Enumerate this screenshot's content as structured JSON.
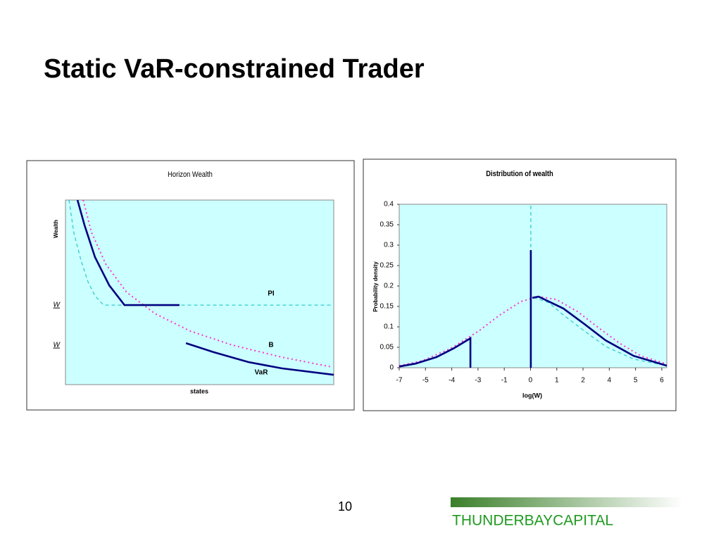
{
  "title": "Static VaR-constrained Trader",
  "page_number": "10",
  "brand": "THUNDERBAYCAPITAL",
  "chart_data": [
    {
      "type": "line",
      "title": "Horizon Wealth",
      "x_label": "states",
      "y_label": "Wealth",
      "xlim": [
        0,
        100
      ],
      "ylim": [
        0,
        100
      ],
      "yticks": [
        {
          "value": 43.1,
          "label": "W"
        },
        {
          "value": 21.4,
          "label": "W"
        }
      ],
      "series": [
        {
          "name": "PI",
          "color": "#33cccc",
          "style": "dashed",
          "x": [
            1.3,
            3.1,
            5.8,
            8.4,
            11.0,
            14.2,
            100
          ],
          "values": [
            100,
            82.4,
            67.2,
            55.7,
            48.1,
            43.1,
            43.1
          ]
        },
        {
          "name": "B",
          "color": "#ff33cc",
          "style": "dotted",
          "x": [
            6.6,
            9.7,
            15.0,
            22.8,
            33.3,
            46.5,
            62.2,
            80.6,
            99.5
          ],
          "values": [
            100,
            82.4,
            65.3,
            50.0,
            38.5,
            29.0,
            21.4,
            14.9,
            9.5
          ]
        },
        {
          "name": "VaR",
          "color": "#000080",
          "style": "solid",
          "x": [
            4.5,
            7.1,
            11.0,
            16.3,
            22.0,
            42.5,
            null,
            44.9,
            55.2,
            68.2,
            80.6,
            100
          ],
          "values": [
            100,
            86.3,
            69.1,
            53.8,
            43.1,
            43.1,
            null,
            22.5,
            17.6,
            12.2,
            8.8,
            5.3
          ]
        }
      ]
    },
    {
      "type": "line",
      "title": "Distribution of wealth",
      "x_label": "log(W)",
      "y_label": "Probability density",
      "xlim": [
        0,
        10.19
      ],
      "ylim": [
        0,
        0.4
      ],
      "xticks": [
        {
          "value": 0,
          "label": "-7"
        },
        {
          "value": 1,
          "label": "-5"
        },
        {
          "value": 2,
          "label": "-4"
        },
        {
          "value": 3,
          "label": "-3"
        },
        {
          "value": 4,
          "label": "-1"
        },
        {
          "value": 5,
          "label": "0"
        },
        {
          "value": 6,
          "label": "1"
        },
        {
          "value": 7,
          "label": "2"
        },
        {
          "value": 8,
          "label": "4"
        },
        {
          "value": 9,
          "label": "5"
        },
        {
          "value": 10,
          "label": "6"
        }
      ],
      "yticks": [
        0,
        0.05,
        0.1,
        0.15,
        0.2,
        0.25,
        0.3,
        0.35,
        0.4
      ],
      "series": [
        {
          "color": "#ff33cc",
          "style": "dotted",
          "x": [
            0,
            0.88,
            1.96,
            3.03,
            3.83,
            4.64,
            5.31,
            5.98,
            6.78,
            7.59,
            8.39,
            9.2,
            10.19
          ],
          "values": [
            0.005,
            0.017,
            0.047,
            0.09,
            0.129,
            0.162,
            0.174,
            0.167,
            0.138,
            0.098,
            0.06,
            0.029,
            0.009
          ]
        },
        {
          "color": "#33cccc",
          "style": "dashed",
          "x": [
            5.013,
            5.013,
            null,
            5.12,
            5.71,
            6.25,
            7.05,
            7.86,
            8.93,
            10.19
          ],
          "values": [
            0,
            0.4,
            null,
            0.172,
            0.159,
            0.129,
            0.09,
            0.052,
            0.021,
            0.005
          ]
        },
        {
          "color": "#000080",
          "style": "solid",
          "x": [
            0,
            0.62,
            1.42,
            2.09,
            2.71,
            2.71,
            null,
            5.013,
            5.013,
            null,
            5.07,
            5.31,
            6.25,
            7.05,
            7.86,
            8.93,
            10.19
          ],
          "values": [
            0.003,
            0.01,
            0.026,
            0.048,
            0.072,
            0,
            null,
            0,
            0.288,
            null,
            0.171,
            0.174,
            0.145,
            0.107,
            0.067,
            0.029,
            0.005
          ]
        }
      ]
    }
  ]
}
